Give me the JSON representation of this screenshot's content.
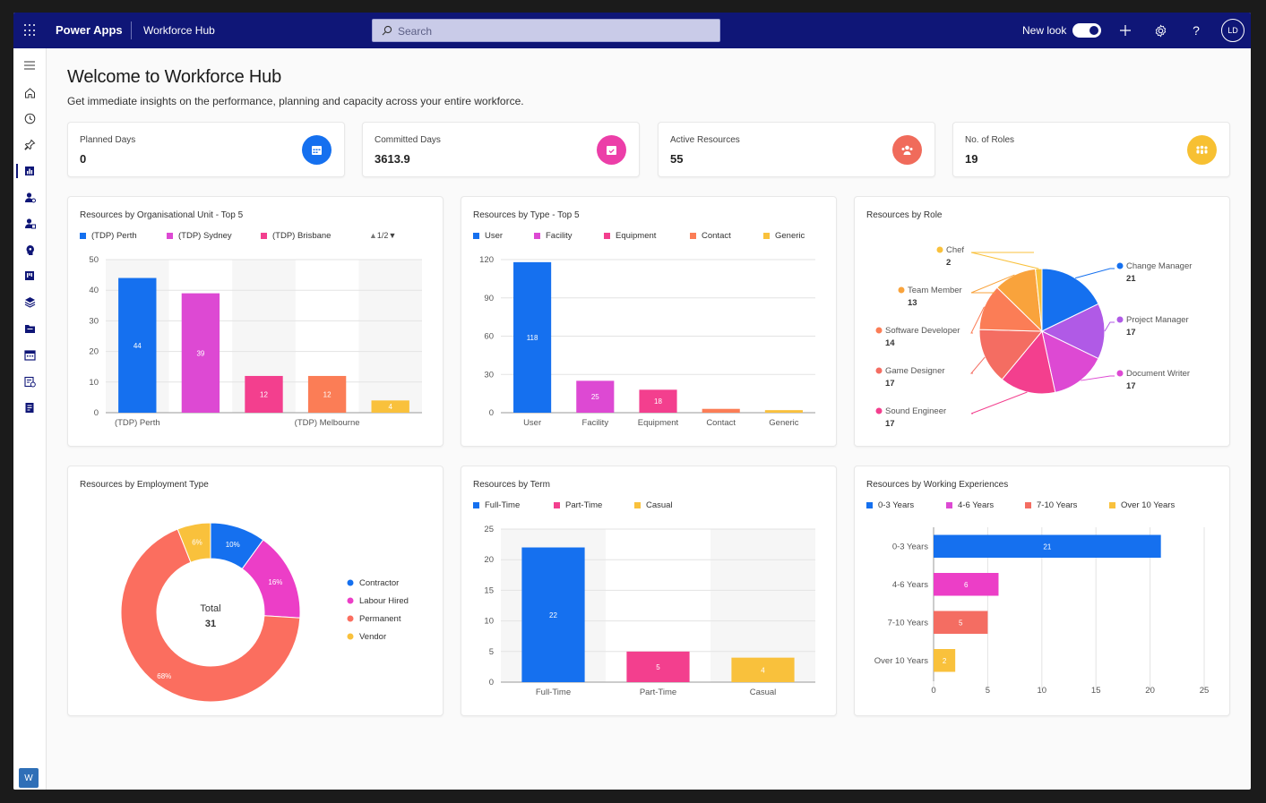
{
  "topbar": {
    "app_name": "Power Apps",
    "hub_name": "Workforce Hub",
    "search_placeholder": "Search",
    "new_look_label": "New look",
    "avatar_initials": "LD"
  },
  "sidebar": {
    "items": [
      "menu-icon",
      "home-icon",
      "recent-icon",
      "pin-icon",
      "dashboard-icon",
      "resource-icon",
      "resource-role-icon",
      "skills-icon",
      "board-icon",
      "layers-icon",
      "folder-icon",
      "calendar-icon",
      "schedule-icon",
      "report-icon"
    ],
    "area_badge": "W"
  },
  "header": {
    "title": "Welcome to Workforce Hub",
    "subtitle": "Get immediate insights on the performance, planning and capacity across your entire workforce."
  },
  "kpis": [
    {
      "label": "Planned Days",
      "value": "0",
      "color": "#1570ef",
      "icon": "calendar-icon"
    },
    {
      "label": "Committed Days",
      "value": "3613.9",
      "color": "#ec3ea8",
      "icon": "calendar-check-icon"
    },
    {
      "label": "Active Resources",
      "value": "55",
      "color": "#f06b5b",
      "icon": "people-icon"
    },
    {
      "label": "No. of Roles",
      "value": "19",
      "color": "#f7c032",
      "icon": "group-icon"
    }
  ],
  "colors": {
    "blue": "#1570ef",
    "magenta": "#dd49d3",
    "pink": "#f33f8e",
    "orange": "#fb7d56",
    "yellow": "#f9c13c",
    "purple": "#b05ae6",
    "coral": "#f46d62"
  },
  "chart_data": [
    {
      "type": "bar",
      "title": "Resources by Organisational Unit - Top 5",
      "legend": [
        "(TDP) Perth",
        "(TDP) Sydney",
        "(TDP) Brisbane"
      ],
      "legend_colors": [
        "#1570ef",
        "#dd49d3",
        "#f33f8e"
      ],
      "pager": "1/2",
      "categories": [
        "(TDP) Perth",
        "(TDP) Sydney",
        "(TDP) Brisbane",
        "(TDP) Melbourne",
        ""
      ],
      "x_tick_labels": [
        "(TDP) Perth",
        "",
        "",
        "(TDP) Melbourne",
        ""
      ],
      "values": [
        44,
        39,
        12,
        12,
        4
      ],
      "bar_colors": [
        "#1570ef",
        "#dd49d3",
        "#f33f8e",
        "#fb7d56",
        "#f9c13c"
      ],
      "ylim": [
        0,
        50
      ],
      "yticks": [
        0,
        10,
        20,
        30,
        40,
        50
      ],
      "grid": true
    },
    {
      "type": "bar",
      "title": "Resources by Type - Top 5",
      "legend": [
        "User",
        "Facility",
        "Equipment",
        "Contact",
        "Generic"
      ],
      "legend_colors": [
        "#1570ef",
        "#dd49d3",
        "#f33f8e",
        "#fb7d56",
        "#f9c13c"
      ],
      "categories": [
        "User",
        "Facility",
        "Equipment",
        "Contact",
        "Generic"
      ],
      "values": [
        118,
        25,
        18,
        3,
        2
      ],
      "data_labels": [
        "118",
        "25",
        "18",
        "",
        ""
      ],
      "bar_colors": [
        "#1570ef",
        "#dd49d3",
        "#f33f8e",
        "#fb7d56",
        "#f9c13c"
      ],
      "ylim": [
        0,
        120
      ],
      "yticks": [
        0,
        30,
        60,
        90,
        120
      ],
      "grid": true
    },
    {
      "type": "pie",
      "title": "Resources by Role",
      "slices": [
        {
          "label": "Change Manager",
          "value": 21,
          "color": "#1570ef"
        },
        {
          "label": "Project Manager",
          "value": 17,
          "color": "#b05ae6"
        },
        {
          "label": "Document Writer",
          "value": 17,
          "color": "#dd49d3"
        },
        {
          "label": "Sound Engineer",
          "value": 17,
          "color": "#f33f8e"
        },
        {
          "label": "Game Designer",
          "value": 17,
          "color": "#f46d62"
        },
        {
          "label": "Software Developer",
          "value": 14,
          "color": "#fb7d56"
        },
        {
          "label": "Team Member",
          "value": 13,
          "color": "#f9a33c"
        },
        {
          "label": "Chef",
          "value": 2,
          "color": "#f9c13c"
        }
      ]
    },
    {
      "type": "pie",
      "title": "Resources by Employment Type",
      "total_label": "Total",
      "total_value": "31",
      "slices": [
        {
          "label": "Contractor",
          "value": 10,
          "pct_label": "10%",
          "color": "#1570ef"
        },
        {
          "label": "Labour Hired",
          "value": 16,
          "pct_label": "16%",
          "color": "#ec3ec7"
        },
        {
          "label": "Permanent",
          "value": 68,
          "pct_label": "68%",
          "color": "#fb6e5f"
        },
        {
          "label": "Vendor",
          "value": 6,
          "pct_label": "6%",
          "color": "#f9c13c"
        }
      ]
    },
    {
      "type": "bar",
      "title": "Resources by Term",
      "legend": [
        "Full-Time",
        "Part-Time",
        "Casual"
      ],
      "legend_colors": [
        "#1570ef",
        "#f33f8e",
        "#f9c13c"
      ],
      "categories": [
        "Full-Time",
        "Part-Time",
        "Casual"
      ],
      "values": [
        22,
        5,
        4
      ],
      "bar_colors": [
        "#1570ef",
        "#f33f8e",
        "#f9c13c"
      ],
      "ylim": [
        0,
        25
      ],
      "yticks": [
        0,
        5,
        10,
        15,
        20,
        25
      ],
      "grid": true
    },
    {
      "type": "bar",
      "orientation": "horizontal",
      "title": "Resources by Working Experiences",
      "legend": [
        "0-3 Years",
        "4-6 Years",
        "7-10 Years",
        "Over 10 Years"
      ],
      "legend_colors": [
        "#1570ef",
        "#dd49d3",
        "#f46d62",
        "#f9c13c"
      ],
      "categories": [
        "0-3 Years",
        "4-6 Years",
        "7-10 Years",
        "Over 10 Years"
      ],
      "values": [
        21,
        6,
        5,
        2
      ],
      "bar_colors": [
        "#1570ef",
        "#ec3ec7",
        "#f46d62",
        "#f9c13c"
      ],
      "xlim": [
        0,
        25
      ],
      "xticks": [
        0,
        5,
        10,
        15,
        20,
        25
      ],
      "grid": true
    }
  ]
}
